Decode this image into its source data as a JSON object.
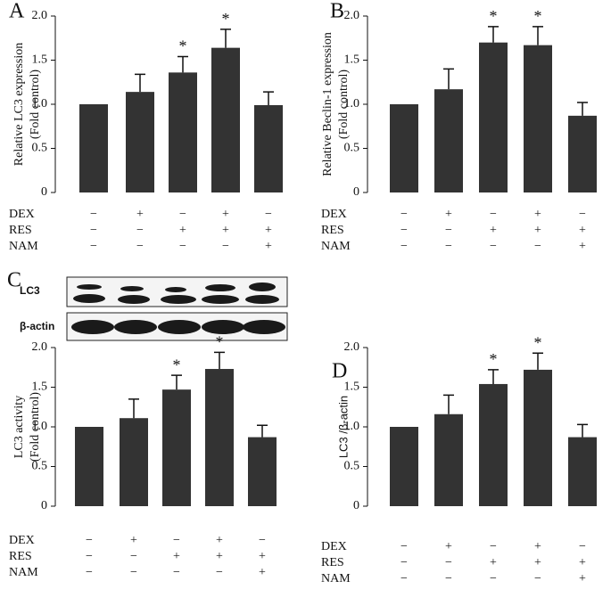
{
  "chart_data": [
    {
      "type": "bar",
      "panel": "A",
      "ylabel": [
        "Relative LC3 expression",
        "(Fold control)"
      ],
      "categories": [
        null,
        null,
        null,
        null,
        null
      ],
      "values": [
        1.0,
        1.14,
        1.36,
        1.64,
        0.99
      ],
      "errors": [
        0,
        0.2,
        0.18,
        0.21,
        0.15
      ],
      "significance": [
        null,
        null,
        "*",
        "*",
        null
      ],
      "color": "#333333",
      "ylim": [
        0,
        2
      ],
      "yticks": [
        0,
        0.5,
        {
          "value": 1,
          "label": "1.0"
        },
        1.5,
        {
          "value": 2,
          "label": "2.0"
        }
      ],
      "treatments": [
        {
          "name": "DEX",
          "signs": [
            "−",
            "+",
            "−",
            "+",
            "−"
          ]
        },
        {
          "name": "RES",
          "signs": [
            "−",
            "−",
            "+",
            "+",
            "+"
          ]
        },
        {
          "name": "NAM",
          "signs": [
            "−",
            "−",
            "−",
            "−",
            "+"
          ]
        }
      ]
    },
    {
      "type": "bar",
      "panel": "B",
      "ylabel": [
        "Relative Beclin-1 expression",
        "(Fold control)"
      ],
      "categories": [
        null,
        null,
        null,
        null,
        null
      ],
      "values": [
        1.0,
        1.17,
        1.7,
        1.67,
        0.87
      ],
      "errors": [
        0,
        0.23,
        0.18,
        0.21,
        0.15
      ],
      "significance": [
        null,
        null,
        "*",
        "*",
        null
      ],
      "color": "#333333",
      "ylim": [
        0,
        2
      ],
      "yticks": [
        0,
        0.5,
        {
          "value": 1,
          "label": "1.0"
        },
        1.5,
        {
          "value": 2,
          "label": "2.0"
        }
      ],
      "treatments": [
        {
          "name": "DEX",
          "signs": [
            "−",
            "+",
            "−",
            "+",
            "−"
          ]
        },
        {
          "name": "RES",
          "signs": [
            "−",
            "−",
            "+",
            "+",
            "+"
          ]
        },
        {
          "name": "NAM",
          "signs": [
            "−",
            "−",
            "−",
            "−",
            "+"
          ]
        }
      ]
    },
    {
      "type": "bar",
      "panel": "C",
      "ylabel": [
        "LC3 activity",
        "(Fold control)"
      ],
      "blot_labels": [
        "LC3",
        "β-actin"
      ],
      "categories": [
        null,
        null,
        null,
        null,
        null
      ],
      "values": [
        1.0,
        1.11,
        1.47,
        1.73,
        0.87
      ],
      "errors": [
        0,
        0.24,
        0.18,
        0.21,
        0.15
      ],
      "significance": [
        null,
        null,
        "*",
        "*",
        null
      ],
      "color": "#333333",
      "ylim": [
        0,
        2
      ],
      "yticks": [
        0,
        0.5,
        {
          "value": 1,
          "label": "1.0"
        },
        1.5,
        {
          "value": 2,
          "label": "2.0"
        }
      ],
      "treatments": [
        {
          "name": "DEX",
          "signs": [
            "−",
            "+",
            "−",
            "+",
            "−"
          ]
        },
        {
          "name": "RES",
          "signs": [
            "−",
            "−",
            "+",
            "+",
            "+"
          ]
        },
        {
          "name": "NAM",
          "signs": [
            "−",
            "−",
            "−",
            "−",
            "+"
          ]
        }
      ]
    },
    {
      "type": "bar",
      "panel": "D",
      "ylabel": [
        "LC3 /β-actin"
      ],
      "categories": [
        null,
        null,
        null,
        null,
        null
      ],
      "values": [
        1.0,
        1.16,
        1.54,
        1.72,
        0.87
      ],
      "errors": [
        0,
        0.24,
        0.18,
        0.21,
        0.16
      ],
      "significance": [
        null,
        null,
        "*",
        "*",
        null
      ],
      "color": "#333333",
      "ylim": [
        0,
        2
      ],
      "yticks": [
        0,
        0.5,
        {
          "value": 1,
          "label": "1.0"
        },
        1.5,
        {
          "value": 2,
          "label": "2.0"
        }
      ],
      "treatments": [
        {
          "name": "DEX",
          "signs": [
            "−",
            "+",
            "−",
            "+",
            "−"
          ]
        },
        {
          "name": "RES",
          "signs": [
            "−",
            "−",
            "+",
            "+",
            "+"
          ]
        },
        {
          "name": "NAM",
          "signs": [
            "−",
            "−",
            "−",
            "−",
            "+"
          ]
        }
      ]
    }
  ]
}
